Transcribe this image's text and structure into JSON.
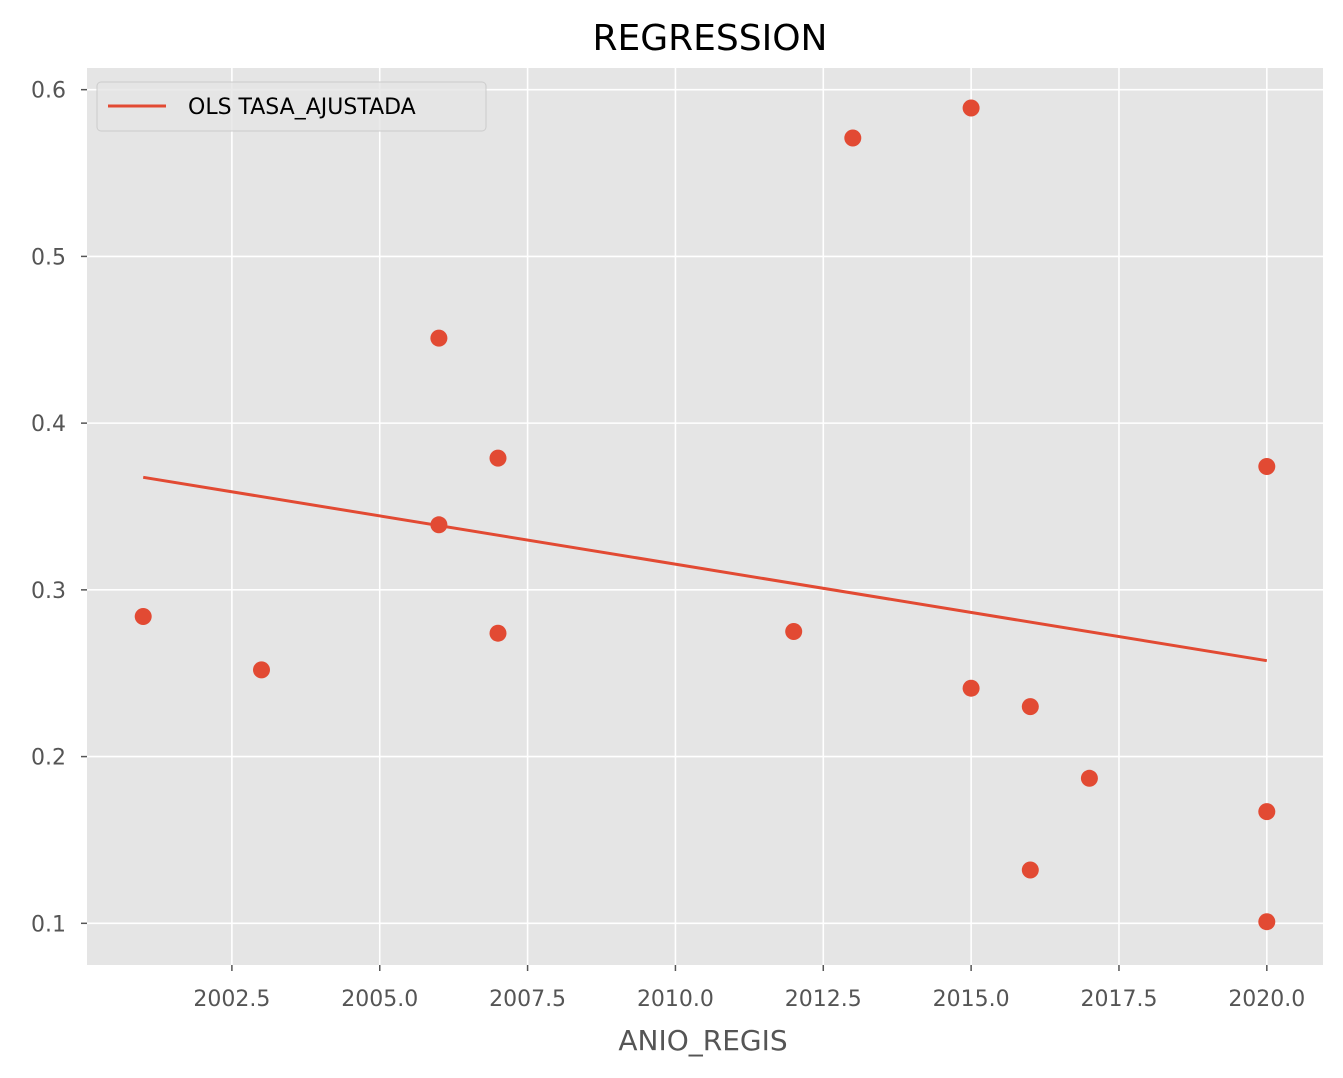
{
  "chart_data": {
    "type": "scatter",
    "title": "REGRESSION",
    "xlabel": "ANIO_REGIS",
    "ylabel": "",
    "xlim": [
      2000.05,
      2020.95
    ],
    "ylim": [
      0.075,
      0.613
    ],
    "grid": true,
    "legend_placement": "top-left",
    "x_ticks": [
      2002.5,
      2005.0,
      2007.5,
      2010.0,
      2012.5,
      2015.0,
      2017.5,
      2020.0
    ],
    "x_tick_labels": [
      "2002.5",
      "2005.0",
      "2007.5",
      "2010.0",
      "2012.5",
      "2015.0",
      "2017.5",
      "2020.0"
    ],
    "y_ticks": [
      0.1,
      0.2,
      0.3,
      0.4,
      0.5,
      0.6
    ],
    "y_tick_labels": [
      "0.1",
      "0.2",
      "0.3",
      "0.4",
      "0.5",
      "0.6"
    ],
    "points": [
      {
        "x": 2001,
        "y": 0.284
      },
      {
        "x": 2003,
        "y": 0.252
      },
      {
        "x": 2006,
        "y": 0.451
      },
      {
        "x": 2006,
        "y": 0.339
      },
      {
        "x": 2007,
        "y": 0.379
      },
      {
        "x": 2007,
        "y": 0.274
      },
      {
        "x": 2012,
        "y": 0.275
      },
      {
        "x": 2013,
        "y": 0.571
      },
      {
        "x": 2015,
        "y": 0.589
      },
      {
        "x": 2015,
        "y": 0.241
      },
      {
        "x": 2016,
        "y": 0.23
      },
      {
        "x": 2016,
        "y": 0.132
      },
      {
        "x": 2017,
        "y": 0.187
      },
      {
        "x": 2020,
        "y": 0.374
      },
      {
        "x": 2020,
        "y": 0.167
      },
      {
        "x": 2020,
        "y": 0.101
      }
    ],
    "series": [
      {
        "name": "OLS TASA_AJUSTADA",
        "type": "line",
        "x": [
          2001,
          2020
        ],
        "y": [
          0.3675,
          0.2575
        ]
      }
    ],
    "colors": {
      "marker": "#E24A33",
      "line": "#E24A33",
      "plot_background": "#E5E5E5",
      "grid": "#FFFFFF"
    }
  }
}
